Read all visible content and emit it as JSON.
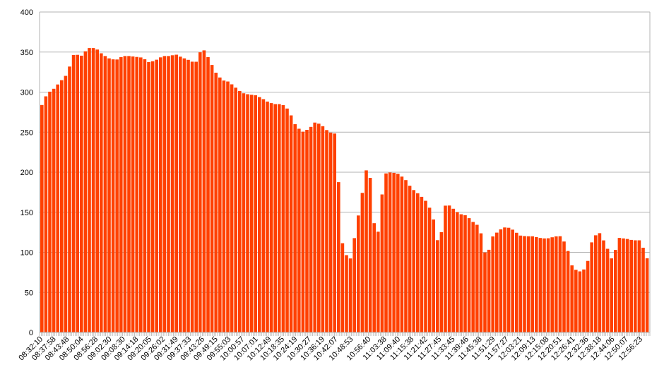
{
  "chart_data": {
    "type": "bar",
    "title": "",
    "xlabel": "",
    "ylabel": "",
    "ylim": [
      0,
      400
    ],
    "yticks": [
      0,
      50,
      100,
      150,
      200,
      250,
      300,
      350,
      400
    ],
    "grid": true,
    "legend": "none",
    "color": "#ff4000",
    "x_tick_labels": [
      "08:32:10",
      "08:37:58",
      "08:43:48",
      "08:50:04",
      "08:56:28",
      "09:02:30",
      "09:08:30",
      "09:14:18",
      "09:20:05",
      "09:26:02",
      "09:31:49",
      "09:37:33",
      "09:43:26",
      "09:49:15",
      "09:55:03",
      "10:00:57",
      "10:07:01",
      "10:12:49",
      "10:18:35",
      "10:24:19",
      "10:30:27",
      "10:36:19",
      "10:42:07",
      "10:48:53",
      "10:56:40",
      "11:03:38",
      "11:09:40",
      "11:15:38",
      "11:21:42",
      "11:27:45",
      "11:33:45",
      "11:39:46",
      "11:45:38",
      "11:51:29",
      "11:57:27",
      "12:03:21",
      "12:09:13",
      "12:15:08",
      "12:20:51",
      "12:26:41",
      "12:32:36",
      "12:38:18",
      "12:44:06",
      "12:50:07",
      "12:56:23"
    ],
    "points": [
      [
        "08:32:10",
        280
      ],
      [
        "08:35:04",
        298
      ],
      [
        "08:37:58",
        304
      ],
      [
        "08:40:53",
        313
      ],
      [
        "08:43:48",
        322
      ],
      [
        "08:46:56",
        348
      ],
      [
        "08:50:04",
        345
      ],
      [
        "08:53:16",
        355
      ],
      [
        "08:56:28",
        355
      ],
      [
        "08:59:29",
        347
      ],
      [
        "09:02:30",
        342
      ],
      [
        "09:05:30",
        340
      ],
      [
        "09:08:30",
        345
      ],
      [
        "09:11:24",
        345
      ],
      [
        "09:14:18",
        344
      ],
      [
        "09:17:11",
        343
      ],
      [
        "09:20:05",
        337
      ],
      [
        "09:23:03",
        340
      ],
      [
        "09:26:02",
        345
      ],
      [
        "09:28:55",
        345
      ],
      [
        "09:31:49",
        347
      ],
      [
        "09:34:41",
        343
      ],
      [
        "09:37:33",
        340
      ],
      [
        "09:40:29",
        336
      ],
      [
        "09:43:26",
        356
      ],
      [
        "09:46:20",
        342
      ],
      [
        "09:49:15",
        325
      ],
      [
        "09:52:09",
        315
      ],
      [
        "09:55:03",
        313
      ],
      [
        "09:58:00",
        306
      ],
      [
        "10:00:57",
        299
      ],
      [
        "10:03:59",
        297
      ],
      [
        "10:07:01",
        296
      ],
      [
        "10:09:55",
        292
      ],
      [
        "10:12:49",
        287
      ],
      [
        "10:15:42",
        285
      ],
      [
        "10:18:35",
        285
      ],
      [
        "10:21:27",
        278
      ],
      [
        "10:24:19",
        260
      ],
      [
        "10:27:23",
        250
      ],
      [
        "10:30:27",
        254
      ],
      [
        "10:33:23",
        263
      ],
      [
        "10:36:19",
        258
      ],
      [
        "10:39:13",
        250
      ],
      [
        "10:42:07",
        248
      ],
      [
        "10:45:30",
        100
      ],
      [
        "10:48:53",
        92
      ],
      [
        "10:52:46",
        155
      ],
      [
        "10:56:40",
        218
      ],
      [
        "11:00:09",
        105
      ],
      [
        "11:03:38",
        198
      ],
      [
        "11:06:39",
        200
      ],
      [
        "11:09:40",
        198
      ],
      [
        "11:12:39",
        192
      ],
      [
        "11:15:38",
        180
      ],
      [
        "11:18:40",
        173
      ],
      [
        "11:21:42",
        165
      ],
      [
        "11:24:43",
        150
      ],
      [
        "11:27:45",
        105
      ],
      [
        "11:30:45",
        162
      ],
      [
        "11:33:45",
        155
      ],
      [
        "11:36:45",
        148
      ],
      [
        "11:39:46",
        146
      ],
      [
        "11:42:42",
        138
      ],
      [
        "11:45:38",
        132
      ],
      [
        "11:48:33",
        92
      ],
      [
        "11:51:29",
        120
      ],
      [
        "11:54:28",
        128
      ],
      [
        "11:57:27",
        132
      ],
      [
        "12:00:24",
        128
      ],
      [
        "12:03:21",
        121
      ],
      [
        "12:06:17",
        120
      ],
      [
        "12:09:13",
        120
      ],
      [
        "12:12:10",
        118
      ],
      [
        "12:15:08",
        117
      ],
      [
        "12:18:00",
        119
      ],
      [
        "12:20:51",
        121
      ],
      [
        "12:23:46",
        110
      ],
      [
        "12:26:41",
        80
      ],
      [
        "12:29:38",
        76
      ],
      [
        "12:32:36",
        80
      ],
      [
        "12:35:27",
        118
      ],
      [
        "12:38:18",
        125
      ],
      [
        "12:41:12",
        110
      ],
      [
        "12:44:06",
        90
      ],
      [
        "12:47:06",
        118
      ],
      [
        "12:50:07",
        117
      ],
      [
        "12:53:15",
        115
      ],
      [
        "12:56:23",
        115
      ],
      [
        "12:58:30",
        100
      ],
      [
        "13:00:00",
        88
      ]
    ]
  }
}
